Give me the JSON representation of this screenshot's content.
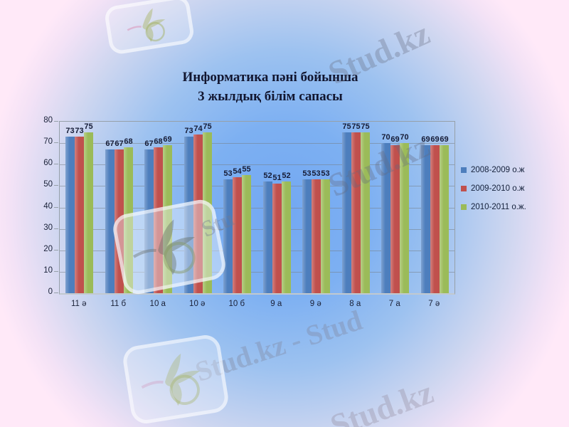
{
  "slide": {
    "title_line1": "Информатика пәні бойынша",
    "title_line2": "3 жылдық білім сапасы"
  },
  "watermarks": [
    {
      "text": "Stud.kz"
    },
    {
      "text": "Stud.kz"
    },
    {
      "text": "Stu"
    },
    {
      "text": "Stud.kz - Stud"
    },
    {
      "text": "Stud.kz"
    }
  ],
  "chart_data": {
    "type": "bar",
    "title": "Информатика пәні бойынша 3 жылдық білім сапасы",
    "categories": [
      "11 ә",
      "11 б",
      "10 а",
      "10 ә",
      "10 б",
      "9 а",
      "9 ә",
      "8 а",
      "7 а",
      "7 ә"
    ],
    "series": [
      {
        "name": "2008-2009 о.ж",
        "color": "#4d7ebd",
        "values": [
          73,
          67,
          67,
          73,
          53,
          52,
          53,
          75,
          70,
          69
        ]
      },
      {
        "name": "2009-2010 о.ж",
        "color": "#c0504d",
        "values": [
          73,
          67,
          68,
          74,
          54,
          51,
          53,
          75,
          69,
          69
        ]
      },
      {
        "name": "2010-2011 о.ж.",
        "color": "#9bbb59",
        "values": [
          75,
          68,
          69,
          75,
          55,
          52,
          53,
          75,
          70,
          69
        ]
      }
    ],
    "xlabel": "",
    "ylabel": "",
    "ylim": [
      0,
      80
    ],
    "yticks": [
      0,
      10,
      20,
      30,
      40,
      50,
      60,
      70,
      80
    ],
    "grid": true,
    "legend_position": "right",
    "data_labels": true
  }
}
